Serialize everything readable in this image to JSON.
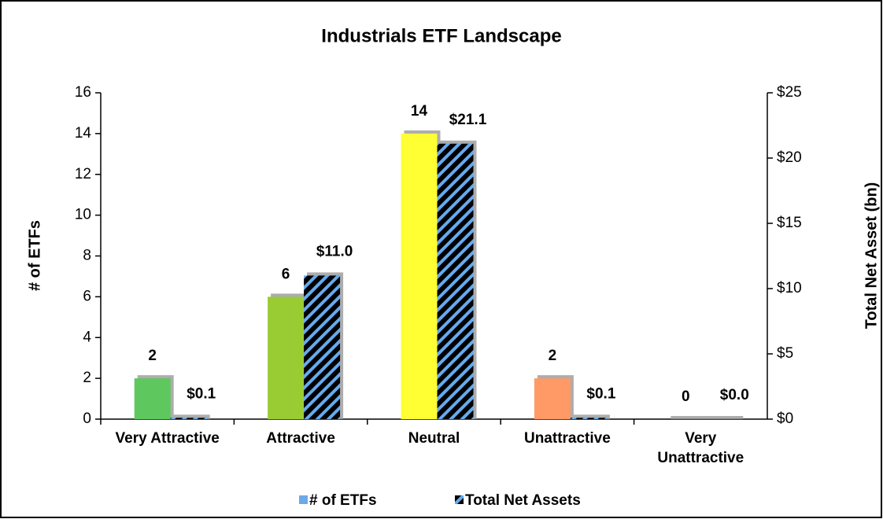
{
  "chart_data": {
    "type": "bar",
    "title": "Industrials ETF Landscape",
    "y_label": "# of ETFs",
    "y2_label": "Total Net Asset (bn)",
    "categories": [
      "Very Attractive",
      "Attractive",
      "Neutral",
      "Unattractive",
      "Very Unattractive"
    ],
    "series": [
      {
        "name": "# of ETFs",
        "color": "#6fa8e8",
        "colors": [
          "#5ec85e",
          "#99cc33",
          "#ffff33",
          "#ff9966",
          "#bfbfbf"
        ],
        "values": [
          2,
          6,
          14,
          2,
          0
        ]
      },
      {
        "name": "Total Net Assets",
        "color": "#000000",
        "hatch_color": "#66aaee",
        "axis": "y2",
        "values": [
          0.1,
          11.0,
          21.1,
          0.1,
          0.0
        ],
        "value_labels": [
          "$0.1",
          "$11.0",
          "$21.1",
          "$0.1",
          "$0.0"
        ]
      }
    ],
    "ylim": [
      0,
      16
    ],
    "yticks": [
      0,
      2,
      4,
      6,
      8,
      10,
      12,
      14,
      16
    ],
    "y2lim": [
      0,
      25
    ],
    "y2ticks": [
      {
        "value": 0,
        "label": "$0"
      },
      {
        "value": 5,
        "label": "$5"
      },
      {
        "value": 10,
        "label": "$10"
      },
      {
        "value": 15,
        "label": "$15"
      },
      {
        "value": 20,
        "label": "$20"
      },
      {
        "value": 25,
        "label": "$25"
      }
    ],
    "legend": "bottom"
  }
}
